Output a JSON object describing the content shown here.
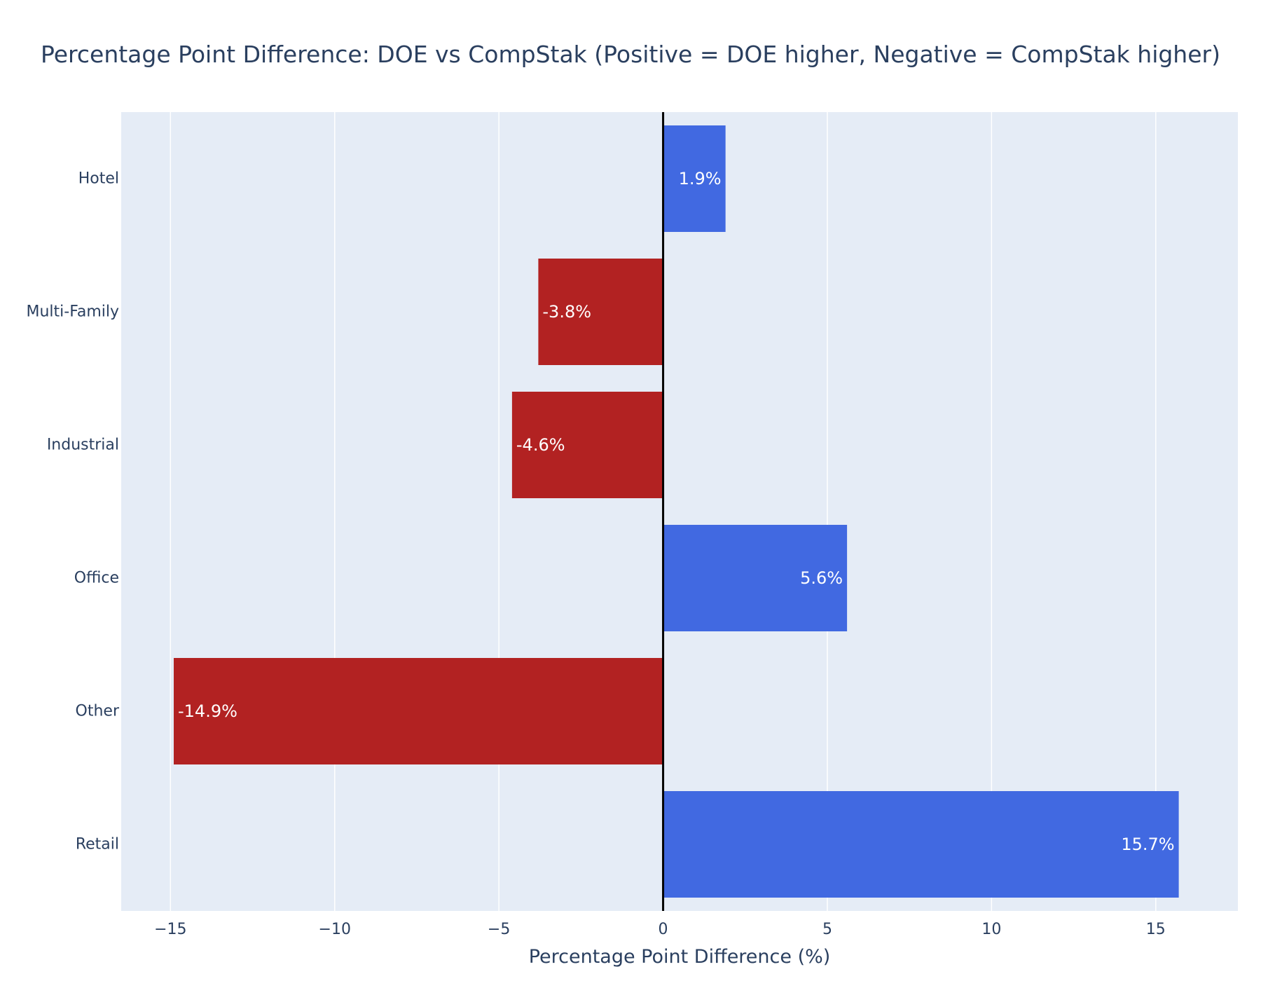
{
  "chart_data": {
    "type": "bar",
    "orientation": "horizontal",
    "title": "Percentage Point Difference: DOE vs CompStak (Positive = DOE higher, Negative = CompStak higher)",
    "xlabel": "Percentage Point Difference (%)",
    "ylabel": "",
    "categories": [
      "Hotel",
      "Multi-Family",
      "Industrial",
      "Office",
      "Other",
      "Retail"
    ],
    "values": [
      1.9,
      -3.8,
      -4.6,
      5.6,
      -14.9,
      15.7
    ],
    "data_labels": [
      "1.9%",
      "-3.8%",
      "-4.6%",
      "5.6%",
      "-14.9%",
      "15.7%"
    ],
    "xlim": [
      -16.5,
      17.5
    ],
    "xticks": [
      -15,
      -10,
      -5,
      0,
      5,
      10,
      15
    ],
    "xtick_labels": [
      "−15",
      "−10",
      "−5",
      "0",
      "5",
      "10",
      "15"
    ],
    "grid": true,
    "colors": {
      "positive": "#4169e1",
      "negative": "#b22222",
      "plot_background": "#e5ecf6",
      "grid": "#ffffff",
      "zero_line": "#000000",
      "text": "#2a3f5f",
      "bar_label": "#ffffff"
    }
  }
}
